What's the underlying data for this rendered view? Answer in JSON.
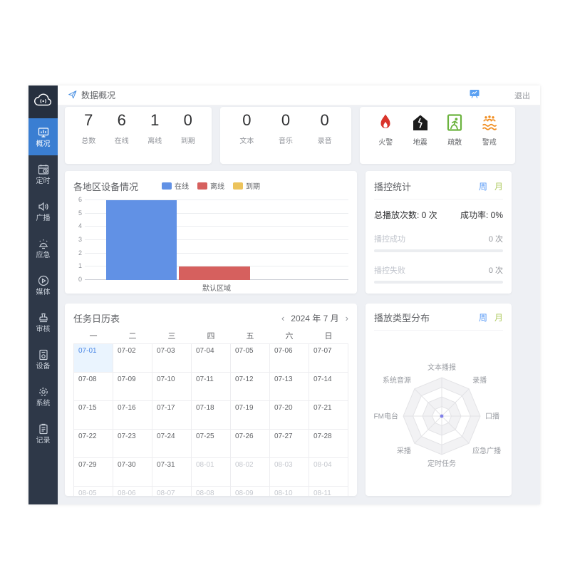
{
  "header": {
    "breadcrumb": "数据概况",
    "logout_label": "退出"
  },
  "sidebar": {
    "items": [
      {
        "key": "overview",
        "icon": "dashboard",
        "label": "概况",
        "active": true
      },
      {
        "key": "timing",
        "icon": "timer",
        "label": "定时",
        "active": false
      },
      {
        "key": "broadcast",
        "icon": "speaker",
        "label": "广播",
        "active": false
      },
      {
        "key": "emergency",
        "icon": "alarm",
        "label": "应急",
        "active": false
      },
      {
        "key": "media",
        "icon": "media",
        "label": "媒体",
        "active": false
      },
      {
        "key": "audit",
        "icon": "stamp",
        "label": "审核",
        "active": false
      },
      {
        "key": "device",
        "icon": "device",
        "label": "设备",
        "active": false
      },
      {
        "key": "system",
        "icon": "gear",
        "label": "系统",
        "active": false
      },
      {
        "key": "records",
        "icon": "clipboard",
        "label": "记录",
        "active": false
      }
    ]
  },
  "stats": {
    "device_summary": [
      {
        "key": "total",
        "value": "7",
        "label": "总数"
      },
      {
        "key": "online",
        "value": "6",
        "label": "在线"
      },
      {
        "key": "offline",
        "value": "1",
        "label": "离线"
      },
      {
        "key": "expired",
        "value": "0",
        "label": "到期"
      }
    ],
    "media_summary": [
      {
        "key": "text",
        "value": "0",
        "label": "文本"
      },
      {
        "key": "music",
        "value": "0",
        "label": "音乐"
      },
      {
        "key": "recording",
        "value": "0",
        "label": "录音"
      }
    ],
    "emergency_types": [
      {
        "key": "fire",
        "icon": "flame",
        "label": "火警",
        "color": "#D9342B"
      },
      {
        "key": "earthquake",
        "icon": "earthquake",
        "label": "地震",
        "color": "#1B1B1B"
      },
      {
        "key": "evacuation",
        "icon": "evacuation",
        "label": "疏散",
        "color": "#6CB33F"
      },
      {
        "key": "alert",
        "icon": "flood",
        "label": "警戒",
        "color": "#F08C1E"
      }
    ]
  },
  "region_chart": {
    "title": "各地区设备情况",
    "chart_data": {
      "type": "bar",
      "categories": [
        "默认区域"
      ],
      "series": [
        {
          "name": "在线",
          "color": "#6191E5",
          "values": [
            6
          ]
        },
        {
          "name": "离线",
          "color": "#D6605E",
          "values": [
            1
          ]
        },
        {
          "name": "到期",
          "color": "#ECC35C",
          "values": [
            0
          ]
        }
      ],
      "ylim": [
        0,
        6
      ],
      "yticks": [
        0,
        1,
        2,
        3,
        4,
        5,
        6
      ],
      "grid": true,
      "legend_position": "top-center"
    }
  },
  "playback_stats": {
    "title": "播控统计",
    "tabs": [
      {
        "label": "周",
        "active": true
      },
      {
        "label": "月",
        "active": false
      }
    ],
    "total": "总播放次数: 0 次",
    "success_rate": "成功率: 0%",
    "rows": [
      {
        "label": "播控成功",
        "value": "0 次",
        "percent": 0
      },
      {
        "label": "播控失败",
        "value": "0 次",
        "percent": 0
      }
    ]
  },
  "calendar": {
    "title": "任务日历表",
    "prev": "‹",
    "next": "›",
    "month_label": "2024 年 7 月",
    "weekdays": [
      "一",
      "二",
      "三",
      "四",
      "五",
      "六",
      "日"
    ],
    "cells": [
      {
        "d": "07-01",
        "today": true
      },
      {
        "d": "07-02"
      },
      {
        "d": "07-03"
      },
      {
        "d": "07-04"
      },
      {
        "d": "07-05"
      },
      {
        "d": "07-06"
      },
      {
        "d": "07-07"
      },
      {
        "d": "07-08"
      },
      {
        "d": "07-09"
      },
      {
        "d": "07-10"
      },
      {
        "d": "07-11"
      },
      {
        "d": "07-12"
      },
      {
        "d": "07-13"
      },
      {
        "d": "07-14"
      },
      {
        "d": "07-15"
      },
      {
        "d": "07-16"
      },
      {
        "d": "07-17"
      },
      {
        "d": "07-18"
      },
      {
        "d": "07-19"
      },
      {
        "d": "07-20"
      },
      {
        "d": "07-21"
      },
      {
        "d": "07-22"
      },
      {
        "d": "07-23"
      },
      {
        "d": "07-24"
      },
      {
        "d": "07-25"
      },
      {
        "d": "07-26"
      },
      {
        "d": "07-27"
      },
      {
        "d": "07-28"
      },
      {
        "d": "07-29"
      },
      {
        "d": "07-30"
      },
      {
        "d": "07-31"
      },
      {
        "d": "08-01",
        "muted": true
      },
      {
        "d": "08-02",
        "muted": true
      },
      {
        "d": "08-03",
        "muted": true
      },
      {
        "d": "08-04",
        "muted": true
      },
      {
        "d": "08-05",
        "muted": true
      },
      {
        "d": "08-06",
        "muted": true
      },
      {
        "d": "08-07",
        "muted": true
      },
      {
        "d": "08-08",
        "muted": true
      },
      {
        "d": "08-09",
        "muted": true
      },
      {
        "d": "08-10",
        "muted": true
      },
      {
        "d": "08-11",
        "muted": true
      }
    ]
  },
  "radar": {
    "title": "播放类型分布",
    "tabs": [
      {
        "label": "周",
        "active": true
      },
      {
        "label": "月",
        "active": false
      }
    ],
    "chart_data": {
      "type": "radar",
      "axes": [
        "文本播报",
        "录播",
        "口播",
        "应急广播",
        "定时任务",
        "采播",
        "FM电台",
        "系统音源"
      ],
      "series": [
        {
          "name": "播放类型",
          "values": [
            0,
            0,
            0,
            0,
            0,
            0,
            0,
            0
          ]
        }
      ],
      "levels": 4,
      "dot_color": "#8080E8"
    }
  },
  "colors": {
    "sidebar_bg": "#2E3848",
    "active_nav": "#3A7ED2",
    "online_blue": "#6191E5",
    "offline_red": "#D6605E",
    "expired_yellow": "#ECC35C",
    "tab_week_blue": "#5A9BF6",
    "tab_month_green": "#AFCB62",
    "today_blue": "#4A87E6"
  }
}
